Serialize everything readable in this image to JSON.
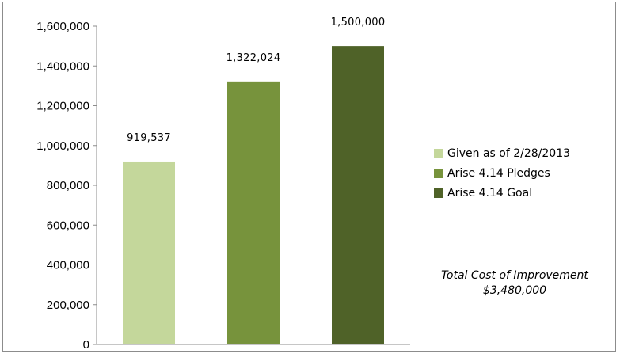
{
  "chart_data": {
    "type": "bar",
    "categories": [
      "Given as of 2/28/2013",
      "Arise 4.14 Pledges",
      "Arise 4.14 Goal"
    ],
    "values": [
      919537,
      1322024,
      1500000
    ],
    "data_labels": [
      "919,537",
      "1,322,024",
      "1,500,000"
    ],
    "colors": [
      "#c4d79b",
      "#77933c",
      "#4f6228"
    ],
    "ylim": [
      0,
      1600000
    ],
    "yticks": [
      0,
      200000,
      400000,
      600000,
      800000,
      1000000,
      1200000,
      1400000,
      1600000
    ],
    "ytick_labels": [
      "0",
      "200,000",
      "400,000",
      "600,000",
      "800,000",
      "1,000,000",
      "1,200,000",
      "1,400,000",
      "1,600,000"
    ],
    "title": "",
    "xlabel": "",
    "ylabel": "",
    "grid": false,
    "legend_position": "right"
  },
  "legend": {
    "items": [
      {
        "label": "Given as of  2/28/2013"
      },
      {
        "label": "Arise 4.14 Pledges"
      },
      {
        "label": "Arise 4.14 Goal"
      }
    ]
  },
  "note": {
    "line1": "Total  Cost of Improvement",
    "line2": "$3,480,000"
  }
}
